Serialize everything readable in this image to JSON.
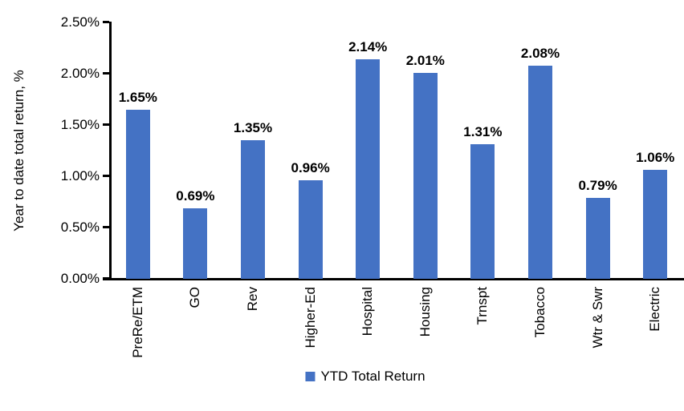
{
  "chart_data": {
    "type": "bar",
    "title": "",
    "ylabel": "Year to date total return, %",
    "xlabel": "",
    "categories": [
      "PreRe/ETM",
      "GO",
      "Rev",
      "Higher-Ed",
      "Hospital",
      "Housing",
      "Trnspt",
      "Tobacco",
      "Wtr & Swr",
      "Electric"
    ],
    "values": [
      1.65,
      0.69,
      1.35,
      0.96,
      2.14,
      2.01,
      1.31,
      2.08,
      0.79,
      1.06
    ],
    "value_labels": [
      "1.65%",
      "0.69%",
      "1.35%",
      "0.96%",
      "2.14%",
      "2.01%",
      "1.31%",
      "2.08%",
      "0.79%",
      "1.06%"
    ],
    "ylim": [
      0,
      2.5
    ],
    "yticks": [
      0,
      0.5,
      1.0,
      1.5,
      2.0,
      2.5
    ],
    "ytick_labels": [
      "0.00%",
      "0.50%",
      "1.00%",
      "1.50%",
      "2.00%",
      "2.50%"
    ],
    "grid": false,
    "bar_color": "#4472C4",
    "axis_color": "#000000",
    "legend_position": "bottom",
    "legend": [
      {
        "label": "YTD Total Return",
        "color": "#4472C4"
      }
    ]
  }
}
